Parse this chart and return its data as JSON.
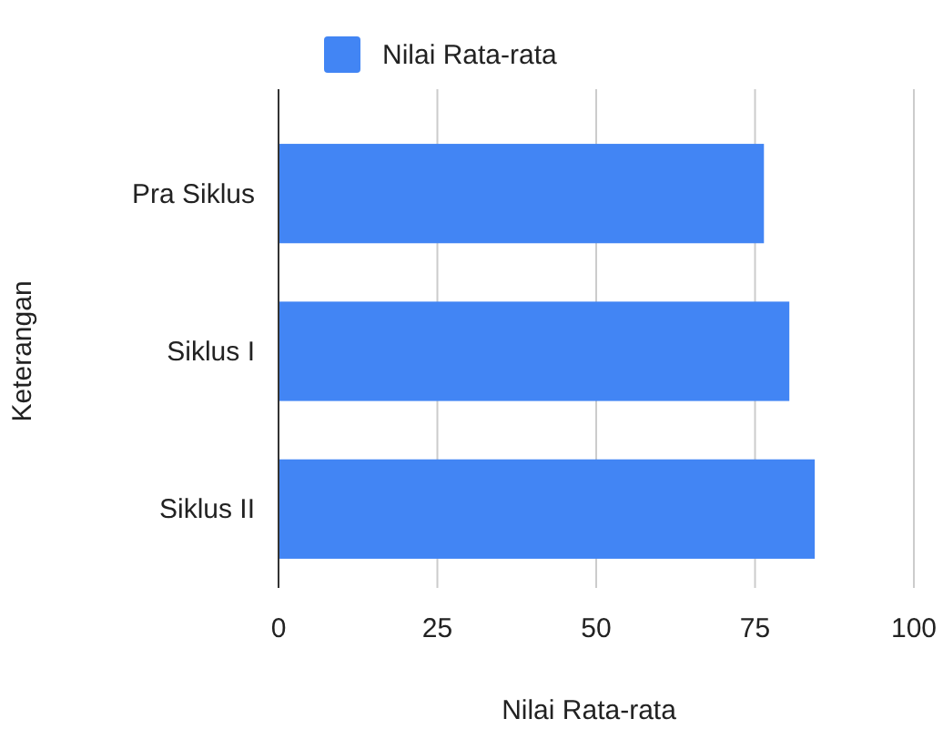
{
  "chart_data": {
    "type": "bar",
    "orientation": "horizontal",
    "xlabel": "Nilai Rata-rata",
    "ylabel": "Keterangan",
    "categories": [
      "Pra Siklus",
      "Siklus I",
      "Siklus II"
    ],
    "series": [
      {
        "name": "Nilai Rata-rata",
        "color": "#4285f4",
        "values": [
          76.4,
          80.4,
          84.4
        ]
      }
    ],
    "xlim": [
      0,
      100
    ],
    "xticks": [
      0,
      25,
      50,
      75,
      100
    ],
    "grid": "x",
    "legend": "top"
  }
}
